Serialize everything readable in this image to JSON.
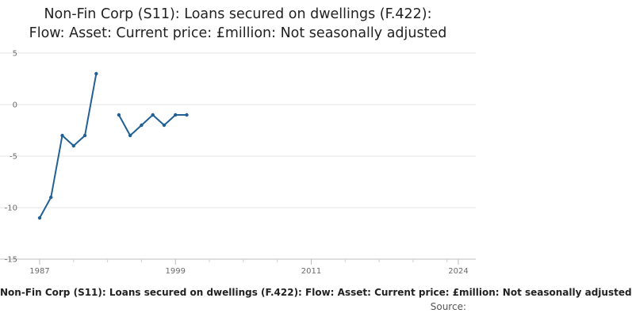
{
  "chart_data": {
    "type": "line",
    "title_lines": [
      "Non-Fin Corp (S11): Loans secured on dwellings (F.422):",
      "Flow: Asset: Current price: £million: Not seasonally adjusted"
    ],
    "footer_caption": "Non-Fin Corp (S11): Loans secured on dwellings (F.422): Flow: Asset: Current price: £million: Not seasonally adjusted",
    "source_label": "Source:",
    "xlim": [
      1987,
      2024
    ],
    "ylim": [
      -15,
      5
    ],
    "x_ticks": [
      1987,
      1999,
      2011,
      2024
    ],
    "y_ticks": [
      5,
      0,
      -5,
      -10,
      -15
    ],
    "x_tick_labels": [
      "1987",
      "1999",
      "2011",
      "2024"
    ],
    "y_tick_labels": [
      "5",
      "0",
      "-5",
      "-10",
      "-15"
    ],
    "grid": true,
    "series_color": "#206095",
    "segments": [
      [
        {
          "x": 1987,
          "y": -11
        },
        {
          "x": 1988,
          "y": -9
        },
        {
          "x": 1989,
          "y": -3
        },
        {
          "x": 1990,
          "y": -4
        },
        {
          "x": 1991,
          "y": -3
        },
        {
          "x": 1992,
          "y": 3
        }
      ],
      [
        {
          "x": 1994,
          "y": -1
        },
        {
          "x": 1995,
          "y": -3
        },
        {
          "x": 1996,
          "y": -2
        },
        {
          "x": 1997,
          "y": -1
        },
        {
          "x": 1998,
          "y": -2
        },
        {
          "x": 1999,
          "y": -1
        },
        {
          "x": 2000,
          "y": -1
        }
      ]
    ]
  }
}
